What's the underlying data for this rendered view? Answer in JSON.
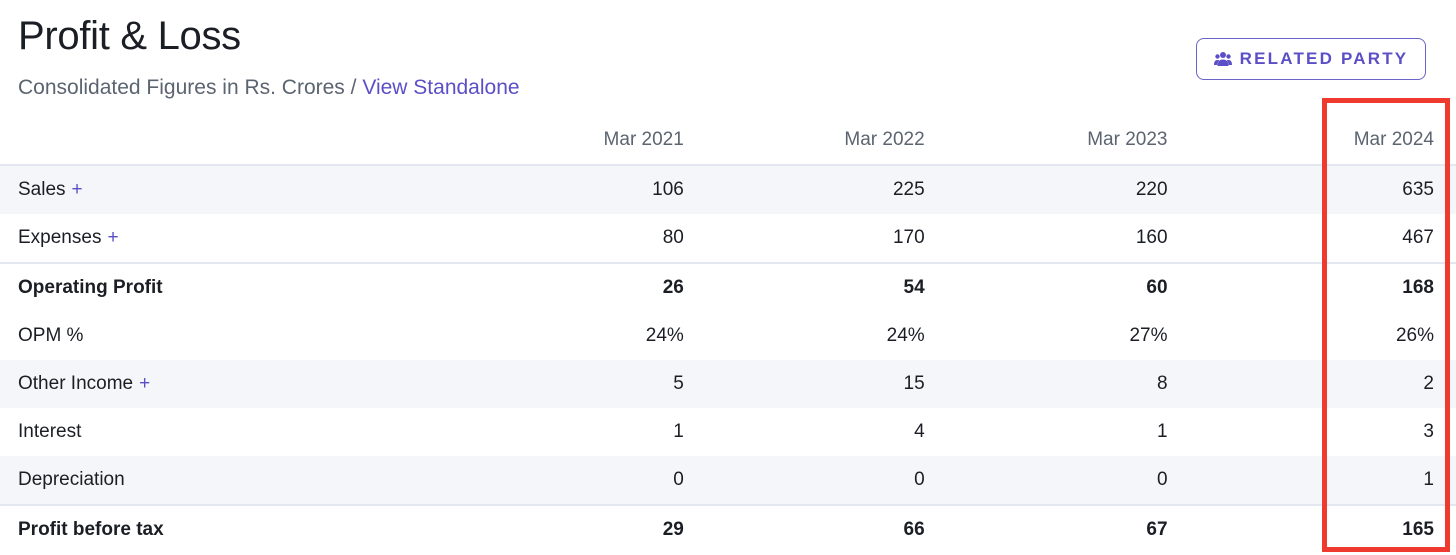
{
  "header": {
    "title": "Profit & Loss",
    "subtitle_prefix": "Consolidated Figures in Rs. Crores /",
    "subtitle_link": "View Standalone",
    "related_party_label": "RELATED PARTY",
    "related_party_icon": "users-icon"
  },
  "table": {
    "columns": [
      "Mar 2021",
      "Mar 2022",
      "Mar 2023",
      "Mar 2024"
    ],
    "rows": [
      {
        "label": "Sales",
        "expandable": true,
        "values": [
          "106",
          "225",
          "220",
          "635"
        ]
      },
      {
        "label": "Expenses",
        "expandable": true,
        "values": [
          "80",
          "170",
          "160",
          "467"
        ]
      },
      {
        "label": "Operating Profit",
        "expandable": false,
        "values": [
          "26",
          "54",
          "60",
          "168"
        ]
      },
      {
        "label": "OPM %",
        "expandable": false,
        "values": [
          "24%",
          "24%",
          "27%",
          "26%"
        ]
      },
      {
        "label": "Other Income",
        "expandable": true,
        "values": [
          "5",
          "15",
          "8",
          "2"
        ]
      },
      {
        "label": "Interest",
        "expandable": false,
        "values": [
          "1",
          "4",
          "1",
          "3"
        ]
      },
      {
        "label": "Depreciation",
        "expandable": false,
        "values": [
          "0",
          "0",
          "0",
          "1"
        ]
      },
      {
        "label": "Profit before tax",
        "expandable": false,
        "values": [
          "29",
          "66",
          "67",
          "165"
        ]
      }
    ],
    "expand_symbol": "+"
  },
  "colors": {
    "accent": "#5b4fc7",
    "highlight_border": "#ef3b2f",
    "row_shade": "#f5f6fa"
  }
}
